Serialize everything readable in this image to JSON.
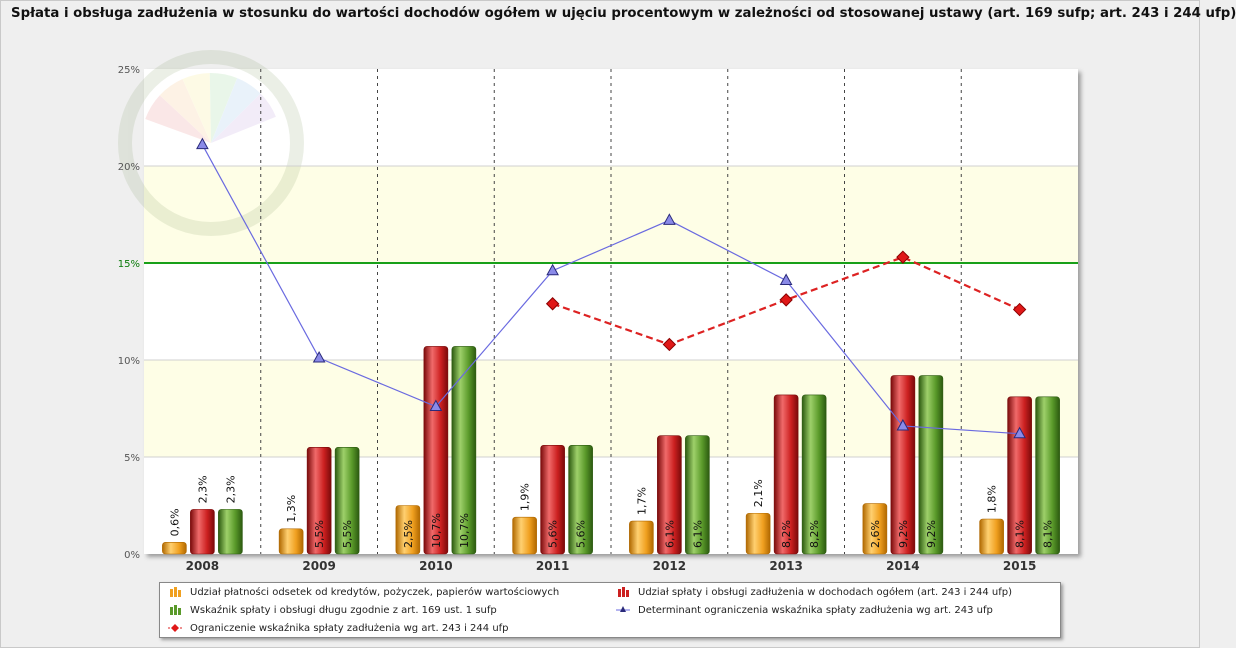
{
  "chart_data": {
    "type": "bar",
    "title": "Spłata i obsługa zadłużenia w stosunku do wartości dochodów ogółem w ujęciu procentowym w zależności od stosowanej ustawy (art. 169 sufp; art. 243 i 244 ufp)",
    "categories": [
      "2008",
      "2009",
      "2010",
      "2011",
      "2012",
      "2013",
      "2014",
      "2015"
    ],
    "ylim": [
      0,
      25
    ],
    "yticks": [
      "0%",
      "5%",
      "10%",
      "15%",
      "20%",
      "25%"
    ],
    "yticks_values": [
      0,
      5,
      10,
      15,
      20,
      25
    ],
    "reference_line": {
      "value": 15,
      "color": "#18a018"
    },
    "bands": [
      {
        "from": 5,
        "to": 10,
        "color": "#fefee6"
      },
      {
        "from": 15,
        "to": 20,
        "color": "#fefee6"
      }
    ],
    "grid": true,
    "legend_position": "bottom",
    "series": [
      {
        "name": "Udział płatności odsetek od kredytów, pożyczek, papierów wartościowych",
        "kind": "bar",
        "color": "#f0a020",
        "values": [
          0.6,
          1.3,
          2.5,
          1.9,
          1.7,
          2.1,
          2.6,
          1.8
        ],
        "labels": [
          "0,6%",
          "1,3%",
          "2,5%",
          "1,9%",
          "1,7%",
          "2,1%",
          "2,6%",
          "1,8%"
        ]
      },
      {
        "name": "Udział spłaty i obsługi zadłużenia w dochodach ogółem (art. 243 i 244 ufp)",
        "kind": "bar",
        "color": "#cc2020",
        "values": [
          2.3,
          5.5,
          10.7,
          5.6,
          6.1,
          8.2,
          9.2,
          8.1
        ],
        "labels": [
          "2,3%",
          "5,5%",
          "10,7%",
          "5,6%",
          "6,1%",
          "8,2%",
          "9,2%",
          "8,1%"
        ]
      },
      {
        "name": "Wskaźnik spłaty i obsługi długu zgodnie z art. 169 ust. 1 sufp",
        "kind": "bar",
        "color": "#5a9a2a",
        "values": [
          2.3,
          5.5,
          10.7,
          5.6,
          6.1,
          8.2,
          9.2,
          8.1
        ],
        "labels": [
          "2,3%",
          "5,5%",
          "10,7%",
          "5,6%",
          "6,1%",
          "8,2%",
          "9,2%",
          "8,1%"
        ]
      },
      {
        "name": "Determinant ograniczenia wskaźnika spłaty zadłużenia wg art. 243 ufp",
        "kind": "line",
        "color": "#6a6ae0",
        "marker": "triangle",
        "values": [
          21.1,
          10.1,
          7.6,
          14.6,
          17.2,
          14.1,
          6.6,
          6.2
        ]
      },
      {
        "name": "Ograniczenie wskaźnika spłaty zadłużenia wg art. 243 i 244 ufp",
        "kind": "line",
        "color": "#dd2222",
        "dashed": true,
        "marker": "diamond",
        "values": [
          null,
          null,
          null,
          12.9,
          10.8,
          13.1,
          15.3,
          12.6
        ]
      }
    ]
  }
}
